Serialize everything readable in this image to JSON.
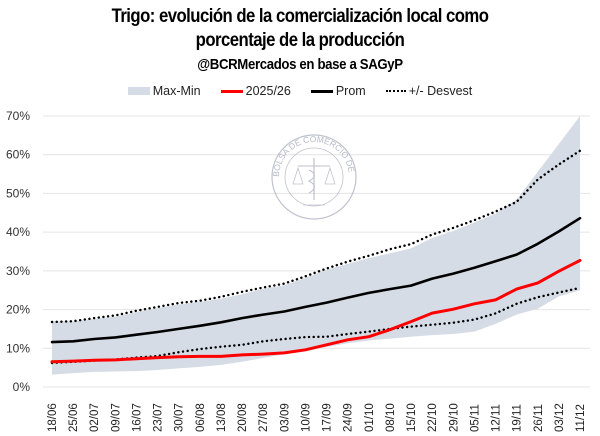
{
  "chart_data": {
    "type": "line",
    "title": "Trigo: evolución de la comercialización local como porcentaje de la producción",
    "title_line1": "Trigo: evolución de la comercialización local como",
    "title_line2": "porcentaje de la producción",
    "subtitle": "@BCRMercados en base a SAGyP",
    "watermark": "BOLSA DE COMERCIO DE ROSARIO",
    "xlabel": "",
    "ylabel": "",
    "ylim": [
      0,
      70
    ],
    "yticks": [
      0,
      10,
      20,
      30,
      40,
      50,
      60,
      70
    ],
    "ytick_labels": [
      "0%",
      "10%",
      "20%",
      "30%",
      "40%",
      "50%",
      "60%",
      "70%"
    ],
    "grid": true,
    "legend_position": "top-center",
    "legend": [
      "Max-Min",
      "2025/26",
      "Prom",
      "+/- Desvest"
    ],
    "categories": [
      "18/06",
      "25/06",
      "02/07",
      "09/07",
      "16/07",
      "23/07",
      "30/07",
      "06/08",
      "13/08",
      "20/08",
      "27/08",
      "03/09",
      "10/09",
      "17/09",
      "24/09",
      "01/10",
      "08/10",
      "15/10",
      "22/10",
      "29/10",
      "05/11",
      "12/11",
      "19/11",
      "26/11",
      "03/12",
      "11/12"
    ],
    "band": {
      "name": "Max-Min",
      "color": "#d6dce5",
      "min": [
        3.2,
        3.6,
        3.9,
        4.0,
        4.1,
        4.4,
        4.8,
        5.2,
        5.7,
        6.5,
        7.5,
        8.5,
        9.4,
        10.3,
        11.3,
        12.0,
        12.5,
        13.0,
        13.4,
        13.7,
        14.3,
        16.3,
        18.7,
        20.2,
        23.4,
        25.0
      ],
      "max": [
        17.0,
        17.0,
        17.6,
        18.2,
        19.4,
        20.4,
        21.3,
        22.0,
        22.8,
        24.0,
        25.4,
        26.3,
        28.2,
        30.3,
        31.8,
        33.3,
        34.5,
        35.8,
        38.5,
        40.3,
        42.5,
        44.8,
        48.4,
        55.6,
        62.8,
        70.0
      ]
    },
    "series": [
      {
        "name": "2025/26",
        "color": "#ff0000",
        "style": "solid",
        "values": [
          6.5,
          6.7,
          6.9,
          7.0,
          7.3,
          7.6,
          7.8,
          7.9,
          7.9,
          8.3,
          8.5,
          8.8,
          9.6,
          10.9,
          12.2,
          13.0,
          14.8,
          16.9,
          19.1,
          20.1,
          21.5,
          22.5,
          25.3,
          26.9,
          29.9,
          32.7
        ]
      },
      {
        "name": "Prom",
        "color": "#000000",
        "style": "solid",
        "values": [
          11.6,
          11.8,
          12.4,
          12.8,
          13.5,
          14.2,
          15.0,
          15.8,
          16.7,
          17.8,
          18.7,
          19.5,
          20.7,
          21.8,
          23.1,
          24.3,
          25.3,
          26.2,
          28.0,
          29.3,
          30.8,
          32.5,
          34.2,
          37.0,
          40.2,
          43.6
        ]
      },
      {
        "name": "+ Desvest",
        "color": "#000000",
        "style": "dotted",
        "values": [
          16.8,
          17.0,
          17.8,
          18.5,
          19.7,
          20.7,
          21.7,
          22.3,
          23.3,
          24.6,
          25.7,
          26.7,
          28.6,
          30.6,
          32.4,
          33.9,
          35.6,
          36.9,
          39.4,
          41.1,
          43.1,
          45.3,
          47.8,
          53.6,
          57.5,
          61.0
        ]
      },
      {
        "name": "- Desvest",
        "color": "#000000",
        "style": "dotted",
        "values": [
          6.2,
          6.5,
          6.8,
          7.1,
          7.6,
          8.0,
          9.0,
          9.8,
          10.4,
          10.9,
          11.8,
          12.4,
          12.9,
          13.0,
          13.7,
          14.3,
          15.0,
          15.6,
          16.1,
          16.6,
          17.4,
          19.0,
          21.5,
          23.2,
          24.4,
          25.6
        ]
      }
    ]
  }
}
